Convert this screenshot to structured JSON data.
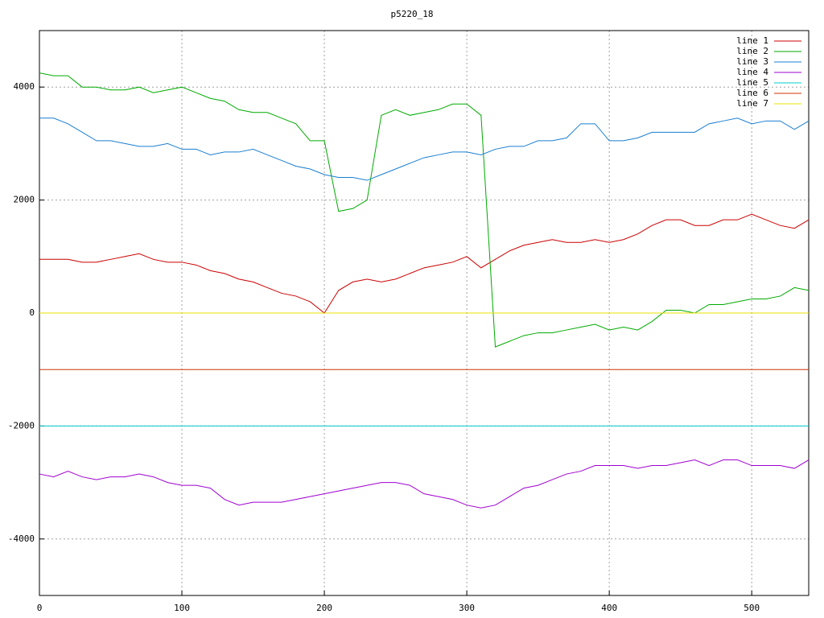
{
  "chart_data": {
    "type": "line",
    "title": "p5220_18",
    "xlim": [
      0,
      540
    ],
    "ylim": [
      -5000,
      5000
    ],
    "xticks": [
      0,
      100,
      200,
      300,
      400,
      500
    ],
    "yticks": [
      -4000,
      -2000,
      0,
      2000,
      4000
    ],
    "grid": true,
    "legend": "top-right",
    "series": [
      {
        "name": "line 1",
        "color": "#cc0000",
        "x": [
          0,
          10,
          20,
          30,
          40,
          50,
          60,
          70,
          80,
          90,
          100,
          110,
          120,
          130,
          140,
          150,
          160,
          170,
          180,
          190,
          200,
          210,
          220,
          230,
          240,
          250,
          260,
          270,
          280,
          290,
          300,
          310,
          320,
          330,
          340,
          350,
          360,
          370,
          380,
          390,
          400,
          410,
          420,
          430,
          440,
          450,
          460,
          470,
          480,
          490,
          500,
          510,
          520,
          530,
          540
        ],
        "values": [
          950,
          950,
          950,
          900,
          900,
          950,
          1000,
          1050,
          950,
          900,
          900,
          850,
          750,
          700,
          600,
          550,
          450,
          350,
          300,
          200,
          0,
          400,
          550,
          600,
          550,
          600,
          700,
          800,
          850,
          900,
          1000,
          800,
          950,
          1100,
          1200,
          1250,
          1300,
          1250,
          1250,
          1300,
          1250,
          1300,
          1400,
          1550,
          1650,
          1650,
          1550,
          1550,
          1650,
          1650,
          1750,
          1650,
          1550,
          1500,
          1650
        ]
      },
      {
        "name": "line 2",
        "color": "#00aa00",
        "x": [
          0,
          10,
          20,
          30,
          40,
          50,
          60,
          70,
          80,
          90,
          100,
          110,
          120,
          130,
          140,
          150,
          160,
          170,
          180,
          190,
          200,
          210,
          220,
          230,
          240,
          250,
          260,
          270,
          280,
          290,
          300,
          310,
          320,
          330,
          340,
          350,
          360,
          370,
          380,
          390,
          400,
          410,
          420,
          430,
          440,
          450,
          460,
          470,
          480,
          490,
          500,
          510,
          520,
          530,
          540
        ],
        "values": [
          4250,
          4200,
          4200,
          4000,
          4000,
          3950,
          3950,
          4000,
          3900,
          3950,
          4000,
          3900,
          3800,
          3750,
          3600,
          3550,
          3550,
          3450,
          3350,
          3050,
          3050,
          1800,
          1850,
          2000,
          3500,
          3600,
          3500,
          3550,
          3600,
          3700,
          3700,
          3500,
          -600,
          -500,
          -400,
          -350,
          -350,
          -300,
          -250,
          -200,
          -300,
          -250,
          -300,
          -150,
          50,
          50,
          0,
          150,
          150,
          200,
          250,
          250,
          300,
          450,
          400
        ]
      },
      {
        "name": "line 3",
        "color": "#1a7fd0",
        "x": [
          0,
          10,
          20,
          30,
          40,
          50,
          60,
          70,
          80,
          90,
          100,
          110,
          120,
          130,
          140,
          150,
          160,
          170,
          180,
          190,
          200,
          210,
          220,
          230,
          240,
          250,
          260,
          270,
          280,
          290,
          300,
          310,
          320,
          330,
          340,
          350,
          360,
          370,
          380,
          390,
          400,
          410,
          420,
          430,
          440,
          450,
          460,
          470,
          480,
          490,
          500,
          510,
          520,
          530,
          540
        ],
        "values": [
          3450,
          3450,
          3350,
          3200,
          3050,
          3050,
          3000,
          2950,
          2950,
          3000,
          2900,
          2900,
          2800,
          2850,
          2850,
          2900,
          2800,
          2700,
          2600,
          2550,
          2450,
          2400,
          2400,
          2350,
          2450,
          2550,
          2650,
          2750,
          2800,
          2850,
          2850,
          2800,
          2900,
          2950,
          2950,
          3050,
          3050,
          3100,
          3350,
          3350,
          3050,
          3050,
          3100,
          3200,
          3200,
          3200,
          3200,
          3350,
          3400,
          3450,
          3350,
          3400,
          3400,
          3250,
          3400
        ]
      },
      {
        "name": "line 4",
        "color": "#a000d0",
        "x": [
          0,
          10,
          20,
          30,
          40,
          50,
          60,
          70,
          80,
          90,
          100,
          110,
          120,
          130,
          140,
          150,
          160,
          170,
          180,
          190,
          200,
          210,
          220,
          230,
          240,
          250,
          260,
          270,
          280,
          290,
          300,
          310,
          320,
          330,
          340,
          350,
          360,
          370,
          380,
          390,
          400,
          410,
          420,
          430,
          440,
          450,
          460,
          470,
          480,
          490,
          500,
          510,
          520,
          530,
          540
        ],
        "values": [
          -2850,
          -2900,
          -2800,
          -2900,
          -2950,
          -2900,
          -2900,
          -2850,
          -2900,
          -3000,
          -3050,
          -3050,
          -3100,
          -3300,
          -3400,
          -3350,
          -3350,
          -3350,
          -3300,
          -3250,
          -3200,
          -3150,
          -3100,
          -3050,
          -3000,
          -3000,
          -3050,
          -3200,
          -3250,
          -3300,
          -3400,
          -3450,
          -3400,
          -3250,
          -3100,
          -3050,
          -2950,
          -2850,
          -2800,
          -2700,
          -2700,
          -2700,
          -2750,
          -2700,
          -2700,
          -2650,
          -2600,
          -2700,
          -2600,
          -2600,
          -2700,
          -2700,
          -2700,
          -2750,
          -2600
        ]
      },
      {
        "name": "line 5",
        "color": "#00cccc",
        "x": [
          0,
          540
        ],
        "values": [
          -2000,
          -2000
        ]
      },
      {
        "name": "line 6",
        "color": "#cc3300",
        "x": [
          0,
          540
        ],
        "values": [
          -1000,
          -1000
        ]
      },
      {
        "name": "line 7",
        "color": "#e8e000",
        "x": [
          0,
          540
        ],
        "values": [
          0,
          0
        ]
      }
    ]
  }
}
